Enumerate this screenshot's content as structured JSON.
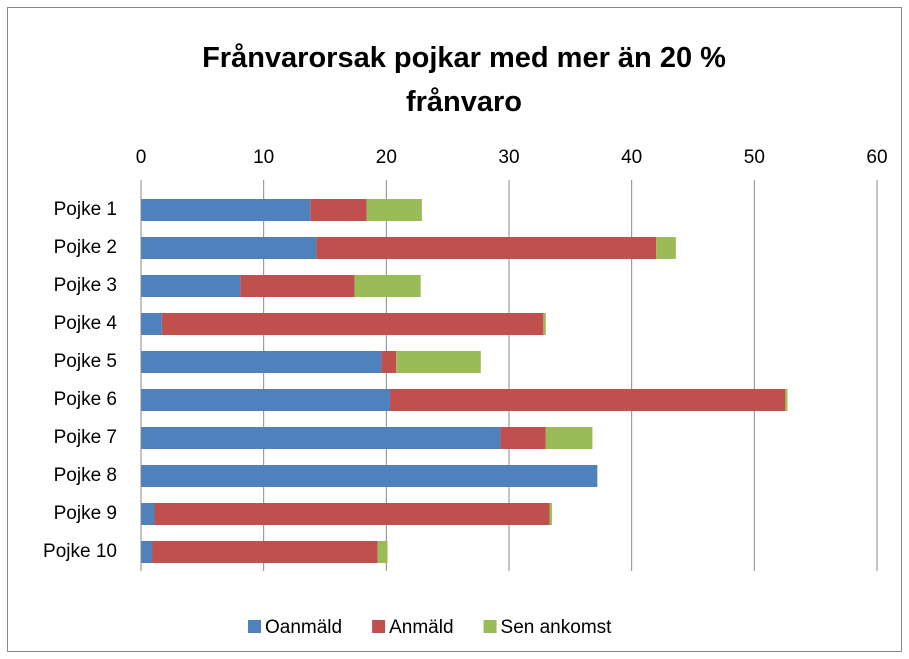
{
  "chart_data": {
    "type": "stacked-bar-horizontal",
    "title": "Frånvarorsak pojkar med mer än 20 % frånvaro",
    "categories": [
      "Pojke 1",
      "Pojke 2",
      "Pojke 3",
      "Pojke 4",
      "Pojke 5",
      "Pojke 6",
      "Pojke 7",
      "Pojke 8",
      "Pojke 9",
      "Pojke 10"
    ],
    "series": [
      {
        "name": "Oanmäld",
        "color": "#4f81bd",
        "values": [
          13.8,
          14.3,
          8.1,
          1.7,
          19.6,
          20.3,
          29.3,
          37.2,
          1.1,
          0.9
        ]
      },
      {
        "name": "Anmäld",
        "color": "#c0504d",
        "values": [
          4.6,
          27.7,
          9.3,
          31.1,
          1.2,
          32.2,
          3.7,
          0,
          32.2,
          18.4
        ]
      },
      {
        "name": "Sen ankomst",
        "color": "#9bbb59",
        "values": [
          4.5,
          1.6,
          5.4,
          0.2,
          6.9,
          0.2,
          3.8,
          0,
          0.2,
          0.8
        ]
      }
    ],
    "xlim": [
      0,
      60
    ],
    "xticks": [
      0,
      10,
      20,
      30,
      40,
      50,
      60
    ],
    "grid": true,
    "legend": "bottom"
  }
}
